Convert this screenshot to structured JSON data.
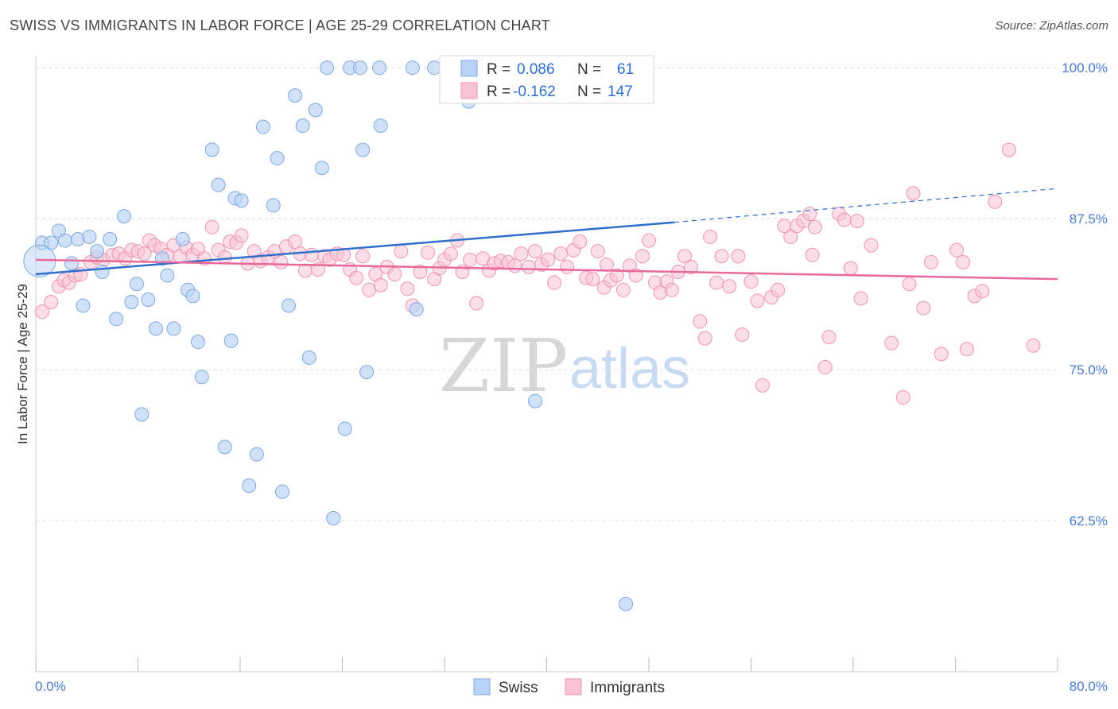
{
  "title": "SWISS VS IMMIGRANTS IN LABOR FORCE | AGE 25-29 CORRELATION CHART",
  "source": "Source: ZipAtlas.com",
  "watermark": {
    "zip": "ZIP",
    "atlas": "atlas"
  },
  "colors": {
    "swiss_fill": "#b8d3f5",
    "swiss_stroke": "#7ea8e0",
    "swiss_line": "#2f6fce",
    "immigrants_fill": "#f8c3d3",
    "immigrants_stroke": "#ee95b2",
    "immigrants_line": "#e8699a",
    "axis_text": "#4a7bd0",
    "grid": "#dddddd"
  },
  "legend": {
    "rows": [
      {
        "r_label": "R =",
        "r_value": "0.086",
        "n_label": "N =",
        "n_value": "61"
      },
      {
        "r_label": "R =",
        "r_value": "-0.162",
        "n_label": "N =",
        "n_value": "147"
      }
    ]
  },
  "bottom_legend": [
    "Swiss",
    "Immigrants"
  ],
  "chart_data": {
    "type": "scatter",
    "xlabel": "",
    "ylabel": "In Labor Force | Age 25-29",
    "xlim": [
      0,
      80
    ],
    "ylim": [
      50,
      101
    ],
    "x_tick_labels": [
      "0.0%",
      "80.0%"
    ],
    "y_ticks": [
      62.5,
      75.0,
      87.5,
      100.0
    ],
    "y_tick_labels": [
      "62.5%",
      "75.0%",
      "87.5%",
      "100.0%"
    ],
    "grid": "horizontal dashed",
    "legend_position": "top-center",
    "series": [
      {
        "name": "Swiss",
        "R": 0.086,
        "N": 61,
        "trend": {
          "x0": 0,
          "y0": 82.9,
          "x1": 50,
          "y1": 87.2,
          "dashed_to_x": 80,
          "dashed_to_y": 90.0
        },
        "points": [
          [
            0.5,
            85.5
          ],
          [
            1.2,
            85.5
          ],
          [
            1.8,
            86.5
          ],
          [
            2.3,
            85.7
          ],
          [
            2.8,
            83.8
          ],
          [
            3.3,
            85.8
          ],
          [
            3.7,
            80.3
          ],
          [
            4.2,
            86.0
          ],
          [
            4.8,
            84.8
          ],
          [
            5.2,
            83.1
          ],
          [
            5.8,
            85.8
          ],
          [
            6.3,
            79.2
          ],
          [
            6.9,
            87.7
          ],
          [
            7.5,
            80.6
          ],
          [
            7.9,
            82.1
          ],
          [
            8.3,
            71.3
          ],
          [
            8.8,
            80.8
          ],
          [
            9.4,
            78.4
          ],
          [
            9.9,
            84.2
          ],
          [
            10.3,
            82.8
          ],
          [
            10.8,
            78.4
          ],
          [
            11.5,
            85.8
          ],
          [
            11.9,
            81.6
          ],
          [
            12.3,
            81.1
          ],
          [
            12.7,
            77.3
          ],
          [
            13.0,
            74.4
          ],
          [
            13.8,
            93.2
          ],
          [
            14.3,
            90.3
          ],
          [
            14.8,
            68.6
          ],
          [
            15.3,
            77.4
          ],
          [
            15.6,
            89.2
          ],
          [
            16.1,
            89.0
          ],
          [
            16.7,
            65.4
          ],
          [
            17.3,
            68.0
          ],
          [
            17.8,
            95.1
          ],
          [
            18.6,
            88.6
          ],
          [
            18.9,
            92.5
          ],
          [
            19.3,
            64.9
          ],
          [
            19.8,
            80.3
          ],
          [
            20.3,
            97.7
          ],
          [
            20.9,
            95.2
          ],
          [
            21.4,
            76.0
          ],
          [
            21.9,
            96.5
          ],
          [
            22.4,
            91.7
          ],
          [
            22.8,
            100.0
          ],
          [
            23.3,
            62.7
          ],
          [
            24.2,
            70.1
          ],
          [
            24.6,
            100.0
          ],
          [
            25.4,
            100.0
          ],
          [
            25.6,
            93.2
          ],
          [
            25.9,
            74.8
          ],
          [
            26.9,
            100.0
          ],
          [
            27.0,
            95.2
          ],
          [
            29.8,
            80.0
          ],
          [
            29.5,
            100.0
          ],
          [
            31.2,
            100.0
          ],
          [
            33.9,
            97.2
          ],
          [
            37.5,
            100.0
          ],
          [
            39.1,
            72.4
          ],
          [
            46.2,
            55.6
          ],
          [
            0.3,
            84.0
          ]
        ]
      },
      {
        "name": "Immigrants",
        "R": -0.162,
        "N": 147,
        "trend": {
          "x0": 0,
          "y0": 84.1,
          "x1": 80,
          "y1": 82.5
        },
        "points": [
          [
            0.5,
            79.8
          ],
          [
            1.2,
            80.6
          ],
          [
            1.8,
            81.9
          ],
          [
            2.2,
            82.4
          ],
          [
            2.6,
            82.2
          ],
          [
            3.1,
            82.8
          ],
          [
            3.5,
            82.9
          ],
          [
            4.3,
            83.9
          ],
          [
            4.8,
            84.3
          ],
          [
            5.3,
            84.1
          ],
          [
            6.0,
            84.5
          ],
          [
            6.5,
            84.6
          ],
          [
            7.0,
            84.2
          ],
          [
            7.5,
            84.9
          ],
          [
            8.0,
            84.8
          ],
          [
            8.5,
            84.6
          ],
          [
            8.9,
            85.7
          ],
          [
            9.3,
            85.3
          ],
          [
            9.8,
            85.0
          ],
          [
            10.3,
            84.5
          ],
          [
            10.8,
            85.3
          ],
          [
            11.3,
            84.4
          ],
          [
            11.8,
            85.1
          ],
          [
            12.3,
            84.5
          ],
          [
            12.7,
            85.0
          ],
          [
            13.2,
            84.2
          ],
          [
            13.8,
            86.8
          ],
          [
            14.3,
            84.9
          ],
          [
            14.8,
            84.3
          ],
          [
            15.2,
            85.6
          ],
          [
            15.7,
            85.5
          ],
          [
            16.1,
            86.1
          ],
          [
            16.6,
            83.8
          ],
          [
            17.1,
            84.8
          ],
          [
            17.6,
            84.0
          ],
          [
            18.2,
            84.3
          ],
          [
            18.7,
            84.8
          ],
          [
            19.2,
            83.9
          ],
          [
            19.6,
            85.2
          ],
          [
            20.3,
            85.6
          ],
          [
            20.7,
            84.6
          ],
          [
            21.1,
            83.2
          ],
          [
            21.6,
            84.5
          ],
          [
            22.1,
            83.3
          ],
          [
            22.6,
            84.4
          ],
          [
            23.0,
            84.1
          ],
          [
            23.6,
            84.6
          ],
          [
            24.1,
            84.5
          ],
          [
            24.6,
            83.3
          ],
          [
            25.1,
            82.6
          ],
          [
            25.6,
            84.4
          ],
          [
            26.1,
            81.6
          ],
          [
            26.6,
            82.9
          ],
          [
            27.0,
            82.0
          ],
          [
            27.5,
            83.5
          ],
          [
            28.1,
            82.9
          ],
          [
            28.6,
            84.8
          ],
          [
            29.1,
            81.7
          ],
          [
            29.5,
            80.3
          ],
          [
            30.1,
            83.1
          ],
          [
            30.7,
            84.7
          ],
          [
            31.2,
            82.5
          ],
          [
            31.6,
            83.4
          ],
          [
            32.0,
            84.1
          ],
          [
            32.5,
            84.6
          ],
          [
            33.0,
            85.7
          ],
          [
            33.4,
            83.1
          ],
          [
            34.0,
            84.1
          ],
          [
            34.5,
            80.5
          ],
          [
            35.0,
            84.2
          ],
          [
            35.5,
            83.2
          ],
          [
            35.9,
            83.8
          ],
          [
            36.4,
            84.0
          ],
          [
            37.0,
            83.9
          ],
          [
            37.5,
            83.6
          ],
          [
            38.0,
            84.6
          ],
          [
            38.6,
            83.5
          ],
          [
            39.1,
            84.8
          ],
          [
            39.6,
            83.7
          ],
          [
            40.1,
            84.1
          ],
          [
            40.6,
            82.2
          ],
          [
            41.1,
            84.6
          ],
          [
            41.6,
            83.5
          ],
          [
            42.1,
            84.9
          ],
          [
            42.6,
            85.6
          ],
          [
            43.1,
            82.6
          ],
          [
            43.6,
            82.5
          ],
          [
            44.0,
            84.8
          ],
          [
            44.5,
            81.8
          ],
          [
            45.0,
            82.4
          ],
          [
            45.5,
            82.8
          ],
          [
            46.0,
            81.6
          ],
          [
            46.5,
            83.6
          ],
          [
            47.0,
            82.8
          ],
          [
            47.5,
            84.4
          ],
          [
            48.0,
            85.7
          ],
          [
            48.5,
            82.2
          ],
          [
            48.9,
            81.4
          ],
          [
            49.4,
            82.3
          ],
          [
            49.8,
            81.6
          ],
          [
            50.3,
            83.1
          ],
          [
            50.8,
            84.4
          ],
          [
            51.3,
            83.5
          ],
          [
            52.0,
            79.0
          ],
          [
            52.4,
            77.6
          ],
          [
            52.8,
            86.0
          ],
          [
            53.3,
            82.2
          ],
          [
            53.7,
            84.4
          ],
          [
            54.3,
            81.9
          ],
          [
            55.0,
            84.4
          ],
          [
            55.3,
            77.9
          ],
          [
            56.0,
            82.3
          ],
          [
            56.5,
            80.7
          ],
          [
            56.9,
            73.7
          ],
          [
            57.6,
            81.0
          ],
          [
            58.1,
            81.6
          ],
          [
            58.6,
            86.9
          ],
          [
            59.1,
            86.0
          ],
          [
            59.6,
            86.9
          ],
          [
            60.1,
            87.3
          ],
          [
            60.6,
            87.9
          ],
          [
            61.0,
            86.8
          ],
          [
            61.8,
            75.2
          ],
          [
            62.1,
            77.7
          ],
          [
            62.9,
            87.9
          ],
          [
            63.3,
            87.4
          ],
          [
            63.8,
            83.4
          ],
          [
            64.3,
            87.3
          ],
          [
            64.6,
            80.9
          ],
          [
            65.4,
            85.3
          ],
          [
            67.0,
            77.2
          ],
          [
            67.9,
            72.7
          ],
          [
            68.4,
            82.1
          ],
          [
            68.7,
            89.6
          ],
          [
            69.5,
            80.1
          ],
          [
            70.1,
            83.9
          ],
          [
            70.9,
            76.3
          ],
          [
            72.1,
            84.9
          ],
          [
            72.6,
            83.9
          ],
          [
            72.9,
            76.7
          ],
          [
            73.5,
            81.1
          ],
          [
            74.1,
            81.5
          ],
          [
            75.1,
            88.9
          ],
          [
            76.2,
            93.2
          ],
          [
            78.1,
            77.0
          ],
          [
            60.8,
            84.5
          ],
          [
            44.7,
            83.7
          ]
        ]
      }
    ]
  }
}
